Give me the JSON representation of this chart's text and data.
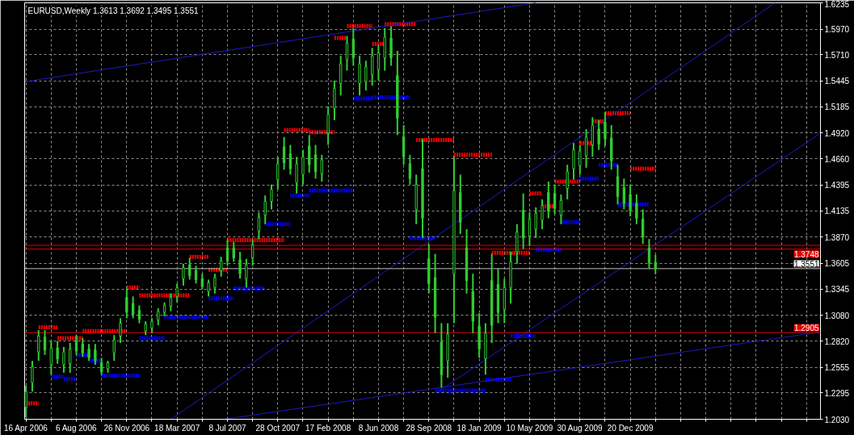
{
  "chart_data": {
    "type": "candlestick",
    "title": "EURUSD,Weekly  1.3613 1.3692 1.3495 1.3551",
    "color": "#32cd32",
    "x": [
      "2006-04-16",
      "2006-04-30",
      "2006-05-14",
      "2006-05-28",
      "2006-06-11",
      "2006-06-25",
      "2006-07-09",
      "2006-07-23",
      "2006-08-06",
      "2006-08-20",
      "2006-09-03",
      "2006-09-17",
      "2006-10-01",
      "2006-10-15",
      "2006-10-29",
      "2006-11-12",
      "2006-11-26",
      "2006-12-10",
      "2006-12-24",
      "2007-01-07",
      "2007-01-21",
      "2007-02-04",
      "2007-02-18",
      "2007-03-04",
      "2007-03-18",
      "2007-04-01",
      "2007-04-15",
      "2007-04-29",
      "2007-05-13",
      "2007-05-27",
      "2007-06-10",
      "2007-06-24",
      "2007-07-08",
      "2007-07-22",
      "2007-08-05",
      "2007-08-19",
      "2007-09-02",
      "2007-09-16",
      "2007-09-30",
      "2007-10-14",
      "2007-10-28",
      "2007-11-11",
      "2007-11-25",
      "2007-12-09",
      "2007-12-23",
      "2008-01-06",
      "2008-01-20",
      "2008-02-03",
      "2008-02-17",
      "2008-03-02",
      "2008-03-16",
      "2008-03-30",
      "2008-04-13",
      "2008-04-27",
      "2008-05-11",
      "2008-05-25",
      "2008-06-08",
      "2008-06-22",
      "2008-07-06",
      "2008-07-20",
      "2008-08-03",
      "2008-08-17",
      "2008-08-31",
      "2008-09-14",
      "2008-09-28",
      "2008-10-12",
      "2008-10-26",
      "2008-11-09",
      "2008-11-23",
      "2008-12-07",
      "2008-12-21",
      "2009-01-04",
      "2009-01-18",
      "2009-02-01",
      "2009-02-15",
      "2009-03-01",
      "2009-03-15",
      "2009-03-29",
      "2009-04-12",
      "2009-04-26",
      "2009-05-10",
      "2009-05-24",
      "2009-06-07",
      "2009-06-21",
      "2009-07-05",
      "2009-07-19",
      "2009-08-02",
      "2009-08-16",
      "2009-08-30",
      "2009-09-13",
      "2009-09-27",
      "2009-10-11",
      "2009-10-25",
      "2009-11-08",
      "2009-11-22",
      "2009-12-06",
      "2009-12-20",
      "2010-01-03",
      "2010-01-17",
      "2010-01-31",
      "2010-02-14"
    ],
    "ohlc": [
      [
        1.215,
        1.237,
        1.205,
        1.231
      ],
      [
        1.24,
        1.262,
        1.231,
        1.256
      ],
      [
        1.271,
        1.293,
        1.262,
        1.287
      ],
      [
        1.286,
        1.293,
        1.268,
        1.273
      ],
      [
        1.258,
        1.282,
        1.248,
        1.275
      ],
      [
        1.275,
        1.282,
        1.259,
        1.264
      ],
      [
        1.258,
        1.276,
        1.25,
        1.271
      ],
      [
        1.259,
        1.28,
        1.25,
        1.274
      ],
      [
        1.282,
        1.288,
        1.268,
        1.272
      ],
      [
        1.279,
        1.285,
        1.266,
        1.27
      ],
      [
        1.274,
        1.279,
        1.262,
        1.265
      ],
      [
        1.273,
        1.279,
        1.258,
        1.262
      ],
      [
        1.26,
        1.265,
        1.248,
        1.251
      ],
      [
        1.254,
        1.262,
        1.25,
        1.26
      ],
      [
        1.27,
        1.288,
        1.262,
        1.283
      ],
      [
        1.287,
        1.305,
        1.28,
        1.3
      ],
      [
        1.326,
        1.335,
        1.305,
        1.311
      ],
      [
        1.32,
        1.327,
        1.305,
        1.309
      ],
      [
        1.313,
        1.318,
        1.3,
        1.304
      ],
      [
        1.292,
        1.302,
        1.288,
        1.299
      ],
      [
        1.295,
        1.305,
        1.29,
        1.302
      ],
      [
        1.303,
        1.315,
        1.298,
        1.312
      ],
      [
        1.311,
        1.321,
        1.307,
        1.318
      ],
      [
        1.317,
        1.33,
        1.312,
        1.326
      ],
      [
        1.327,
        1.34,
        1.321,
        1.336
      ],
      [
        1.345,
        1.36,
        1.338,
        1.356
      ],
      [
        1.359,
        1.366,
        1.344,
        1.348
      ],
      [
        1.353,
        1.358,
        1.34,
        1.344
      ],
      [
        1.345,
        1.35,
        1.334,
        1.337
      ],
      [
        1.332,
        1.344,
        1.327,
        1.341
      ],
      [
        1.336,
        1.35,
        1.33,
        1.346
      ],
      [
        1.353,
        1.367,
        1.347,
        1.363
      ],
      [
        1.376,
        1.384,
        1.358,
        1.363
      ],
      [
        1.376,
        1.382,
        1.362,
        1.366
      ],
      [
        1.364,
        1.372,
        1.345,
        1.35
      ],
      [
        1.345,
        1.365,
        1.336,
        1.359
      ],
      [
        1.366,
        1.384,
        1.358,
        1.379
      ],
      [
        1.393,
        1.412,
        1.385,
        1.407
      ],
      [
        1.409,
        1.429,
        1.4,
        1.423
      ],
      [
        1.423,
        1.44,
        1.415,
        1.435
      ],
      [
        1.445,
        1.468,
        1.435,
        1.461
      ],
      [
        1.478,
        1.488,
        1.455,
        1.462
      ],
      [
        1.471,
        1.48,
        1.45,
        1.456
      ],
      [
        1.442,
        1.468,
        1.431,
        1.461
      ],
      [
        1.45,
        1.475,
        1.44,
        1.468
      ],
      [
        1.479,
        1.49,
        1.452,
        1.46
      ],
      [
        1.47,
        1.48,
        1.446,
        1.453
      ],
      [
        1.451,
        1.47,
        1.443,
        1.465
      ],
      [
        1.492,
        1.519,
        1.48,
        1.511
      ],
      [
        1.517,
        1.545,
        1.505,
        1.537
      ],
      [
        1.542,
        1.57,
        1.53,
        1.562
      ],
      [
        1.566,
        1.59,
        1.555,
        1.583
      ],
      [
        1.587,
        1.598,
        1.56,
        1.568
      ],
      [
        1.542,
        1.57,
        1.53,
        1.562
      ],
      [
        1.544,
        1.565,
        1.535,
        1.559
      ],
      [
        1.551,
        1.578,
        1.54,
        1.57
      ],
      [
        1.556,
        1.58,
        1.545,
        1.573
      ],
      [
        1.568,
        1.598,
        1.555,
        1.589
      ],
      [
        1.588,
        1.6,
        1.56,
        1.568
      ],
      [
        1.55,
        1.575,
        1.49,
        1.507
      ],
      [
        1.488,
        1.5,
        1.46,
        1.468
      ],
      [
        1.461,
        1.47,
        1.44,
        1.446
      ],
      [
        1.415,
        1.45,
        1.4,
        1.44
      ],
      [
        1.456,
        1.486,
        1.386,
        1.406
      ],
      [
        1.365,
        1.38,
        1.33,
        1.34
      ],
      [
        1.346,
        1.37,
        1.29,
        1.306
      ],
      [
        1.281,
        1.3,
        1.235,
        1.248
      ],
      [
        1.262,
        1.3,
        1.245,
        1.289
      ],
      [
        1.35,
        1.468,
        1.3,
        1.434
      ],
      [
        1.432,
        1.45,
        1.39,
        1.402
      ],
      [
        1.376,
        1.395,
        1.33,
        1.343
      ],
      [
        1.332,
        1.35,
        1.29,
        1.302
      ],
      [
        1.297,
        1.31,
        1.265,
        1.274
      ],
      [
        1.264,
        1.3,
        1.248,
        1.29
      ],
      [
        1.343,
        1.37,
        1.28,
        1.298
      ],
      [
        1.339,
        1.355,
        1.3,
        1.311
      ],
      [
        1.314,
        1.345,
        1.3,
        1.336
      ],
      [
        1.336,
        1.372,
        1.32,
        1.362
      ],
      [
        1.372,
        1.4,
        1.36,
        1.392
      ],
      [
        1.414,
        1.431,
        1.375,
        1.386
      ],
      [
        1.388,
        1.412,
        1.378,
        1.405
      ],
      [
        1.395,
        1.417,
        1.386,
        1.411
      ],
      [
        1.404,
        1.425,
        1.395,
        1.419
      ],
      [
        1.432,
        1.443,
        1.406,
        1.413
      ],
      [
        1.431,
        1.44,
        1.41,
        1.416
      ],
      [
        1.409,
        1.43,
        1.4,
        1.424
      ],
      [
        1.436,
        1.46,
        1.425,
        1.453
      ],
      [
        1.456,
        1.482,
        1.445,
        1.475
      ],
      [
        1.459,
        1.48,
        1.45,
        1.474
      ],
      [
        1.469,
        1.496,
        1.457,
        1.488
      ],
      [
        1.48,
        1.508,
        1.468,
        1.5
      ],
      [
        1.496,
        1.505,
        1.475,
        1.481
      ],
      [
        1.503,
        1.513,
        1.479,
        1.486
      ],
      [
        1.487,
        1.5,
        1.455,
        1.464
      ],
      [
        1.448,
        1.46,
        1.42,
        1.428
      ],
      [
        1.437,
        1.446,
        1.415,
        1.421
      ],
      [
        1.43,
        1.44,
        1.408,
        1.414
      ],
      [
        1.421,
        1.43,
        1.4,
        1.406
      ],
      [
        1.405,
        1.415,
        1.38,
        1.387
      ],
      [
        1.376,
        1.385,
        1.355,
        1.361
      ],
      [
        1.3613,
        1.3692,
        1.3495,
        1.3551
      ]
    ],
    "series": [
      {
        "type": "step",
        "color": "#ff0000",
        "line_style": "dotted",
        "x": [
          "2006-04-16",
          "2006-05-14",
          "2006-06-25",
          "2006-08-20",
          "2006-11-26",
          "2006-12-24",
          "2007-04-15",
          "2007-05-27",
          "2007-07-08",
          "2007-11-11",
          "2008-01-06",
          "2008-03-02",
          "2008-03-30",
          "2008-05-25",
          "2008-06-22",
          "2008-08-31",
          "2008-11-23",
          "2009-02-15",
          "2009-05-10",
          "2009-06-07",
          "2009-07-05",
          "2009-08-30",
          "2009-09-27",
          "2009-10-25",
          "2009-12-20",
          "2010-02-14"
        ],
        "values": [
          1.219,
          1.296,
          1.285,
          1.292,
          1.336,
          1.328,
          1.367,
          1.354,
          1.384,
          1.495,
          1.493,
          1.588,
          1.6,
          1.582,
          1.602,
          1.485,
          1.47,
          1.371,
          1.431,
          1.418,
          1.443,
          1.482,
          1.504,
          1.512,
          1.456,
          1.456
        ]
      },
      {
        "type": "step",
        "color": "#0000ff",
        "line_style": "dotted",
        "x": [
          "2006-06-11",
          "2006-07-09",
          "2006-08-06",
          "2006-09-03",
          "2006-10-01",
          "2006-12-24",
          "2007-02-18",
          "2007-05-27",
          "2007-07-22",
          "2007-09-30",
          "2007-11-25",
          "2008-01-06",
          "2008-04-13",
          "2008-05-25",
          "2008-08-17",
          "2008-10-12",
          "2009-02-01",
          "2009-03-29",
          "2009-05-24",
          "2009-07-19",
          "2009-08-30",
          "2009-10-11",
          "2009-11-22",
          "2010-01-31"
        ],
        "values": [
          1.246,
          1.244,
          1.268,
          1.262,
          1.247,
          1.285,
          1.306,
          1.325,
          1.335,
          1.4,
          1.429,
          1.434,
          1.527,
          1.528,
          1.386,
          1.232,
          1.243,
          1.287,
          1.374,
          1.402,
          1.446,
          1.46,
          1.42,
          1.42
        ]
      },
      {
        "type": "line",
        "color": "#1c1cc0",
        "line_style": "solid",
        "x": [
          "2006-04-16",
          "2009-05-24"
        ],
        "values": [
          1.544,
          1.6235
        ]
      },
      {
        "type": "line",
        "color": "#1c1cc0",
        "line_style": "solid",
        "x": [
          "2007-03-04",
          "2010-11-07"
        ],
        "values": [
          1.203,
          1.6235
        ]
      },
      {
        "type": "line",
        "color": "#1c1cc0",
        "line_style": "solid",
        "x": [
          "2008-10-19",
          "2011-02-13"
        ],
        "values": [
          1.231,
          1.491
        ]
      },
      {
        "type": "line",
        "color": "#1c1cc0",
        "line_style": "solid",
        "x": [
          "2007-07-01",
          "2011-02-13"
        ],
        "values": [
          1.203,
          1.291
        ]
      }
    ],
    "ref_lines": [
      {
        "axis": "y",
        "value": 1.3786,
        "label": null,
        "color": "#e00000"
      },
      {
        "axis": "y",
        "value": 1.3748,
        "label": "1.3748",
        "color": "#e00000"
      },
      {
        "axis": "y",
        "value": 1.2905,
        "label": "1.2905",
        "color": "#e00000"
      },
      {
        "axis": "y",
        "value": 1.3551,
        "label": "1.3551",
        "color": "#c0c0c0"
      }
    ],
    "xlim": [
      "2006-04-13",
      "2011-02-16"
    ],
    "xticks": [
      {
        "value": "2006-04-16",
        "label": "16 Apr 2006"
      },
      {
        "value": "2006-06-11",
        "label": null
      },
      {
        "value": "2006-08-06",
        "label": "6 Aug 2006"
      },
      {
        "value": "2006-10-01",
        "label": null
      },
      {
        "value": "2006-11-26",
        "label": "26 Nov 2006"
      },
      {
        "value": "2007-01-21",
        "label": null
      },
      {
        "value": "2007-03-18",
        "label": "18 Mar 2007"
      },
      {
        "value": "2007-05-13",
        "label": null
      },
      {
        "value": "2007-07-08",
        "label": "8 Jul 2007"
      },
      {
        "value": "2007-09-02",
        "label": null
      },
      {
        "value": "2007-10-28",
        "label": "28 Oct 2007"
      },
      {
        "value": "2007-12-23",
        "label": null
      },
      {
        "value": "2008-02-17",
        "label": "17 Feb 2008"
      },
      {
        "value": "2008-04-13",
        "label": null
      },
      {
        "value": "2008-06-08",
        "label": "8 Jun 2008"
      },
      {
        "value": "2008-08-03",
        "label": null
      },
      {
        "value": "2008-09-28",
        "label": "28 Sep 2008"
      },
      {
        "value": "2008-11-23",
        "label": null
      },
      {
        "value": "2009-01-18",
        "label": "18 Jan 2009"
      },
      {
        "value": "2009-03-15",
        "label": null
      },
      {
        "value": "2009-05-10",
        "label": "10 May 2009"
      },
      {
        "value": "2009-07-05",
        "label": null
      },
      {
        "value": "2009-08-30",
        "label": "30 Aug 2009"
      },
      {
        "value": "2009-10-25",
        "label": null
      },
      {
        "value": "2009-12-20",
        "label": "20 Dec 2009"
      },
      {
        "value": "2010-02-14",
        "label": null
      },
      {
        "value": "2010-04-11",
        "label": null
      },
      {
        "value": "2010-06-06",
        "label": null
      },
      {
        "value": "2010-08-01",
        "label": null
      },
      {
        "value": "2010-09-26",
        "label": null
      },
      {
        "value": "2010-11-21",
        "label": null
      },
      {
        "value": "2011-01-16",
        "label": null
      }
    ],
    "ylim": [
      1.203,
      1.6235
    ],
    "yticks": [
      {
        "value": 1.203,
        "label": "1.2030"
      },
      1.2295,
      1.2555,
      {
        "value": 1.282,
        "label": "1.2820"
      },
      {
        "value": 1.308,
        "label": "1.3080"
      },
      1.3345,
      1.3605,
      {
        "value": 1.387,
        "label": "1.3870"
      },
      1.4135,
      1.4395,
      {
        "value": 1.466,
        "label": "1.4660"
      },
      {
        "value": 1.492,
        "label": "1.4920"
      },
      1.5185,
      1.5445,
      {
        "value": 1.571,
        "label": "1.5710"
      },
      {
        "value": 1.597,
        "label": "1.5970"
      },
      1.6235
    ],
    "grid": true
  }
}
